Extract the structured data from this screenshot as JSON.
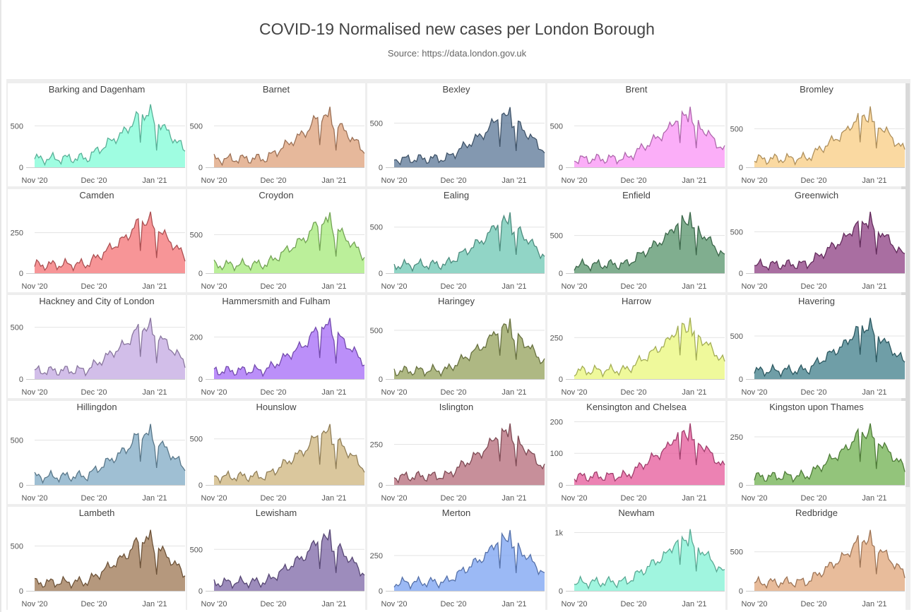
{
  "title": "COVID-19 Normalised new cases per London Borough",
  "subtitle": "Source: https://data.london.gov.uk",
  "chart_data": {
    "type": "area",
    "layout": "small-multiples",
    "x_ticks": [
      "Nov '20",
      "Dec '20",
      "Jan '21"
    ],
    "boroughs": [
      {
        "name": "Barking and Dagenham",
        "color": "#7ffcd7",
        "peak": 760,
        "ylim": [
          0,
          800
        ],
        "yticks": [
          {
            "v": 0,
            "label": "0"
          },
          {
            "v": 500,
            "label": "500"
          }
        ]
      },
      {
        "name": "Barnet",
        "color": "#dda07a",
        "peak": 730,
        "ylim": [
          0,
          800
        ],
        "yticks": [
          {
            "v": 0,
            "label": "0"
          },
          {
            "v": 500,
            "label": "500"
          }
        ]
      },
      {
        "name": "Bexley",
        "color": "#5a7695",
        "peak": 680,
        "ylim": [
          0,
          750
        ],
        "yticks": [
          {
            "v": 0,
            "label": "0"
          },
          {
            "v": 500,
            "label": "500"
          }
        ]
      },
      {
        "name": "Brent",
        "color": "#f993f5",
        "peak": 730,
        "ylim": [
          0,
          800
        ],
        "yticks": [
          {
            "v": 0,
            "label": "0"
          },
          {
            "v": 500,
            "label": "500"
          }
        ]
      },
      {
        "name": "Bromley",
        "color": "#f8cc82",
        "peak": 790,
        "ylim": [
          0,
          860
        ],
        "yticks": [
          {
            "v": 0,
            "label": "0"
          },
          {
            "v": 500,
            "label": "500"
          }
        ]
      },
      {
        "name": "Camden",
        "color": "#f47174",
        "peak": 380,
        "ylim": [
          0,
          410
        ],
        "yticks": [
          {
            "v": 0,
            "label": "0"
          },
          {
            "v": 250,
            "label": "250"
          }
        ]
      },
      {
        "name": "Croydon",
        "color": "#a4e978",
        "peak": 790,
        "ylim": [
          0,
          860
        ],
        "yticks": [
          {
            "v": 0,
            "label": "0"
          },
          {
            "v": 500,
            "label": "500"
          }
        ]
      },
      {
        "name": "Ealing",
        "color": "#6cc7b3",
        "peak": 660,
        "ylim": [
          0,
          720
        ],
        "yticks": [
          {
            "v": 0,
            "label": "0"
          },
          {
            "v": 500,
            "label": "500"
          }
        ]
      },
      {
        "name": "Enfield",
        "color": "#55936a",
        "peak": 810,
        "ylim": [
          0,
          880
        ],
        "yticks": [
          {
            "v": 0,
            "label": "0"
          },
          {
            "v": 500,
            "label": "500"
          }
        ]
      },
      {
        "name": "Greenwich",
        "color": "#8c3e82",
        "peak": 740,
        "ylim": [
          0,
          800
        ],
        "yticks": [
          {
            "v": 0,
            "label": "0"
          },
          {
            "v": 500,
            "label": "500"
          }
        ]
      },
      {
        "name": "Hackney and City of London",
        "color": "#c3a8e2",
        "peak": 590,
        "ylim": [
          0,
          640
        ],
        "yticks": [
          {
            "v": 0,
            "label": "0"
          },
          {
            "v": 500,
            "label": "500"
          }
        ]
      },
      {
        "name": "Hammersmith and Fulham",
        "color": "#a46af7",
        "peak": 290,
        "ylim": [
          0,
          315
        ],
        "yticks": [
          {
            "v": 0,
            "label": "0"
          },
          {
            "v": 200,
            "label": "200"
          }
        ]
      },
      {
        "name": "Haringey",
        "color": "#93a05a",
        "peak": 620,
        "ylim": [
          0,
          680
        ],
        "yticks": [
          {
            "v": 0,
            "label": "0"
          },
          {
            "v": 500,
            "label": "500"
          }
        ]
      },
      {
        "name": "Harrow",
        "color": "#e9f77a",
        "peak": 370,
        "ylim": [
          0,
          400
        ],
        "yticks": [
          {
            "v": 0,
            "label": "0"
          },
          {
            "v": 250,
            "label": "250"
          }
        ]
      },
      {
        "name": "Havering",
        "color": "#3f7d89",
        "peak": 710,
        "ylim": [
          0,
          770
        ],
        "yticks": [
          {
            "v": 0,
            "label": "0"
          },
          {
            "v": 500,
            "label": "500"
          }
        ]
      },
      {
        "name": "Hillingdon",
        "color": "#7faac4",
        "peak": 680,
        "ylim": [
          0,
          740
        ],
        "yticks": [
          {
            "v": 0,
            "label": "0"
          },
          {
            "v": 500,
            "label": "500"
          }
        ]
      },
      {
        "name": "Hounslow",
        "color": "#cdb47c",
        "peak": 660,
        "ylim": [
          0,
          720
        ],
        "yticks": [
          {
            "v": 0,
            "label": "0"
          },
          {
            "v": 500,
            "label": "500"
          }
        ]
      },
      {
        "name": "Islington",
        "color": "#b46a78",
        "peak": 380,
        "ylim": [
          0,
          410
        ],
        "yticks": [
          {
            "v": 0,
            "label": "0"
          },
          {
            "v": 250,
            "label": "250"
          }
        ]
      },
      {
        "name": "Kensington and Chelsea",
        "color": "#e5589a",
        "peak": 195,
        "ylim": [
          0,
          210
        ],
        "yticks": [
          {
            "v": 0,
            "label": "0"
          },
          {
            "v": 100,
            "label": "100"
          },
          {
            "v": 200,
            "label": "200"
          }
        ]
      },
      {
        "name": "Kingston upon Thames",
        "color": "#6fb04f",
        "peak": 320,
        "ylim": [
          0,
          345
        ],
        "yticks": [
          {
            "v": 0,
            "label": "0"
          },
          {
            "v": 250,
            "label": "250"
          }
        ]
      },
      {
        "name": "Lambeth",
        "color": "#9c7651",
        "peak": 680,
        "ylim": [
          0,
          740
        ],
        "yticks": [
          {
            "v": 0,
            "label": "0"
          },
          {
            "v": 500,
            "label": "500"
          }
        ]
      },
      {
        "name": "Lewisham",
        "color": "#7c65a6",
        "peak": 740,
        "ylim": [
          0,
          800
        ],
        "yticks": [
          {
            "v": 0,
            "label": "0"
          },
          {
            "v": 500,
            "label": "500"
          }
        ]
      },
      {
        "name": "Merton",
        "color": "#7aa1f2",
        "peak": 430,
        "ylim": [
          0,
          470
        ],
        "yticks": [
          {
            "v": 0,
            "label": "0"
          },
          {
            "v": 250,
            "label": "250"
          }
        ]
      },
      {
        "name": "Newham",
        "color": "#80f2d4",
        "peak": 1060,
        "ylim": [
          0,
          1140
        ],
        "yticks": [
          {
            "v": 0,
            "label": "0"
          },
          {
            "v": 1000,
            "label": "1k"
          }
        ]
      },
      {
        "name": "Redbridge",
        "color": "#e0a57a",
        "peak": 780,
        "ylim": [
          0,
          850
        ],
        "yticks": [
          {
            "v": 0,
            "label": "0"
          },
          {
            "v": 500,
            "label": "500"
          }
        ]
      }
    ]
  }
}
